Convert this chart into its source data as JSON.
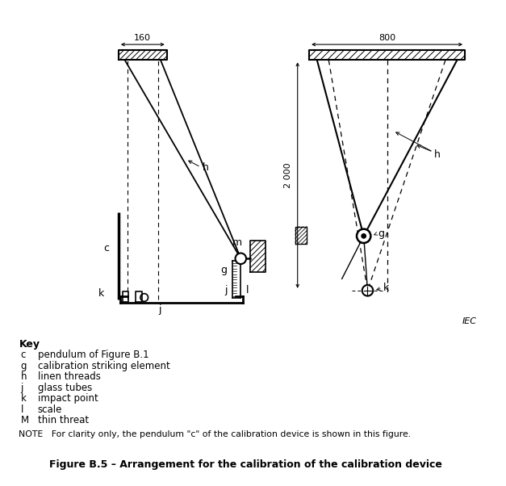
{
  "fig_width": 6.27,
  "fig_height": 6.02,
  "dpi": 100,
  "bg_color": "#ffffff",
  "line_color": "#000000",
  "title": "Figure B.5 – Arrangement for the calibration of the calibration device",
  "note": "NOTE   For clarity only, the pendulum \"c\" of the calibration device is shown in this figure.",
  "key_entries": [
    [
      "c",
      "pendulum of Figure B.1"
    ],
    [
      "g",
      "calibration striking element"
    ],
    [
      "h",
      "linen threads"
    ],
    [
      "j",
      "glass tubes"
    ],
    [
      "k",
      "impact point"
    ],
    [
      "l",
      "scale"
    ],
    [
      "M",
      "thin threat"
    ]
  ],
  "dim_160": "160",
  "dim_800": "800",
  "dim_2000": "2 000",
  "label_IEC": "IEC"
}
